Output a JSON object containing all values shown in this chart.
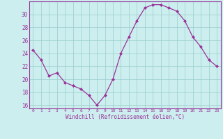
{
  "x": [
    0,
    1,
    2,
    3,
    4,
    5,
    6,
    7,
    8,
    9,
    10,
    11,
    12,
    13,
    14,
    15,
    16,
    17,
    18,
    19,
    20,
    21,
    22,
    23
  ],
  "y": [
    24.5,
    23.0,
    20.5,
    21.0,
    19.5,
    19.0,
    18.5,
    17.5,
    16.0,
    17.5,
    20.0,
    24.0,
    26.5,
    29.0,
    31.0,
    31.5,
    31.5,
    31.0,
    30.5,
    29.0,
    26.5,
    25.0,
    23.0,
    22.0
  ],
  "line_color": "#993399",
  "marker": "D",
  "marker_size": 2.0,
  "bg_color": "#cceeee",
  "grid_color": "#99cccc",
  "xlabel": "Windchill (Refroidissement éolien,°C)",
  "xlabel_color": "#993399",
  "tick_color": "#993399",
  "ylim": [
    15.5,
    32.0
  ],
  "yticks": [
    16,
    18,
    20,
    22,
    24,
    26,
    28,
    30
  ],
  "xticks": [
    0,
    1,
    2,
    3,
    4,
    5,
    6,
    7,
    8,
    9,
    10,
    11,
    12,
    13,
    14,
    15,
    16,
    17,
    18,
    19,
    20,
    21,
    22,
    23
  ],
  "xtick_labels": [
    "0",
    "1",
    "2",
    "3",
    "4",
    "5",
    "6",
    "7",
    "8",
    "9",
    "10",
    "11",
    "12",
    "13",
    "14",
    "15",
    "16",
    "17",
    "18",
    "19",
    "20",
    "21",
    "22",
    "23"
  ],
  "spine_color": "#993399",
  "figsize": [
    3.2,
    2.0
  ],
  "dpi": 100
}
